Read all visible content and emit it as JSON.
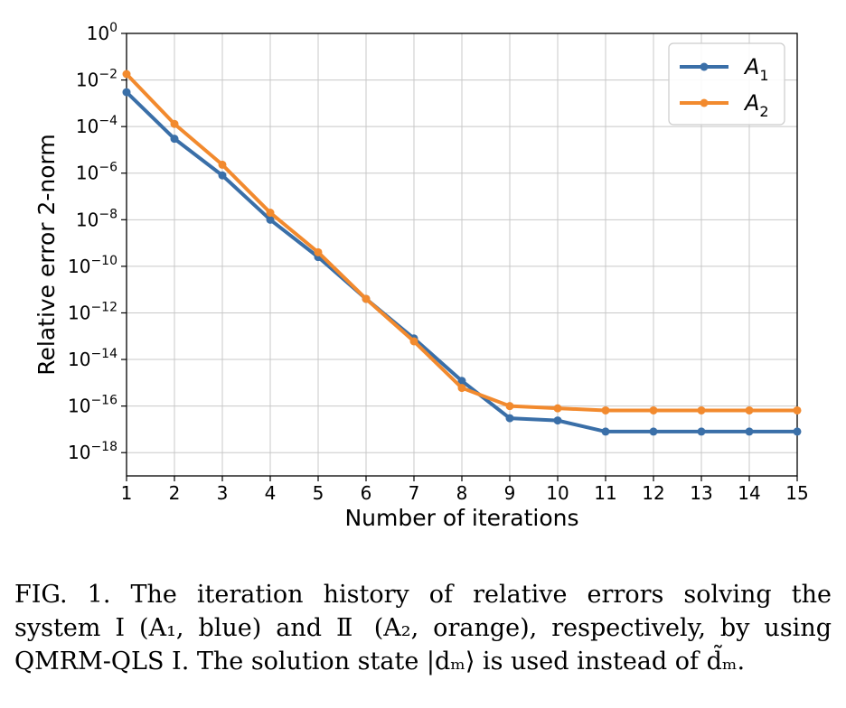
{
  "chart_data": {
    "type": "line",
    "xlabel": "Number of iterations",
    "ylabel": "Relative error 2-norm",
    "x": [
      1,
      2,
      3,
      4,
      5,
      6,
      7,
      8,
      9,
      10,
      11,
      12,
      13,
      14,
      15
    ],
    "xlim": [
      1,
      15
    ],
    "ylim": [
      1e-19,
      1
    ],
    "y_scale": "log",
    "x_ticks": [
      "1",
      "2",
      "3",
      "4",
      "5",
      "6",
      "7",
      "8",
      "9",
      "10",
      "11",
      "12",
      "13",
      "14",
      "15"
    ],
    "y_ticks": [
      {
        "base": "10",
        "exp": "0",
        "value": 1
      },
      {
        "base": "10",
        "exp": "−2",
        "value": 0.01
      },
      {
        "base": "10",
        "exp": "−4",
        "value": 0.0001
      },
      {
        "base": "10",
        "exp": "−6",
        "value": 1e-06
      },
      {
        "base": "10",
        "exp": "−8",
        "value": 1e-08
      },
      {
        "base": "10",
        "exp": "−10",
        "value": 1e-10
      },
      {
        "base": "10",
        "exp": "−12",
        "value": 1e-12
      },
      {
        "base": "10",
        "exp": "−14",
        "value": 1e-14
      },
      {
        "base": "10",
        "exp": "−16",
        "value": 1e-16
      },
      {
        "base": "10",
        "exp": "−18",
        "value": 1e-18
      }
    ],
    "grid": true,
    "legend_position": "top-right",
    "series": [
      {
        "name": "A1",
        "label_main": "A",
        "label_sub": "1",
        "color": "#3a6fa8",
        "values": [
          0.003,
          3e-05,
          8e-07,
          1e-08,
          2.5e-10,
          4e-12,
          8e-14,
          1.2e-15,
          3e-17,
          2.4e-17,
          8e-18,
          8e-18,
          8e-18,
          8e-18,
          8e-18
        ]
      },
      {
        "name": "A2",
        "label_main": "A",
        "label_sub": "2",
        "color": "#f28a2e",
        "values": [
          0.018,
          0.00013,
          2.3e-06,
          2e-08,
          4e-10,
          4e-12,
          6e-14,
          6e-16,
          1e-16,
          8e-17,
          6.5e-17,
          6.5e-17,
          6.5e-17,
          6.5e-17,
          6.5e-17
        ]
      }
    ]
  },
  "caption": {
    "line1": "FIG. 1.  The iteration history of relative errors solving the",
    "line2": "system I (A₁, blue) and Ⅱ (A₂, orange), respectively, by using",
    "line3": "QMRM-QLS I. The solution state |dₘ⟩ is used instead of d̃ₘ."
  }
}
